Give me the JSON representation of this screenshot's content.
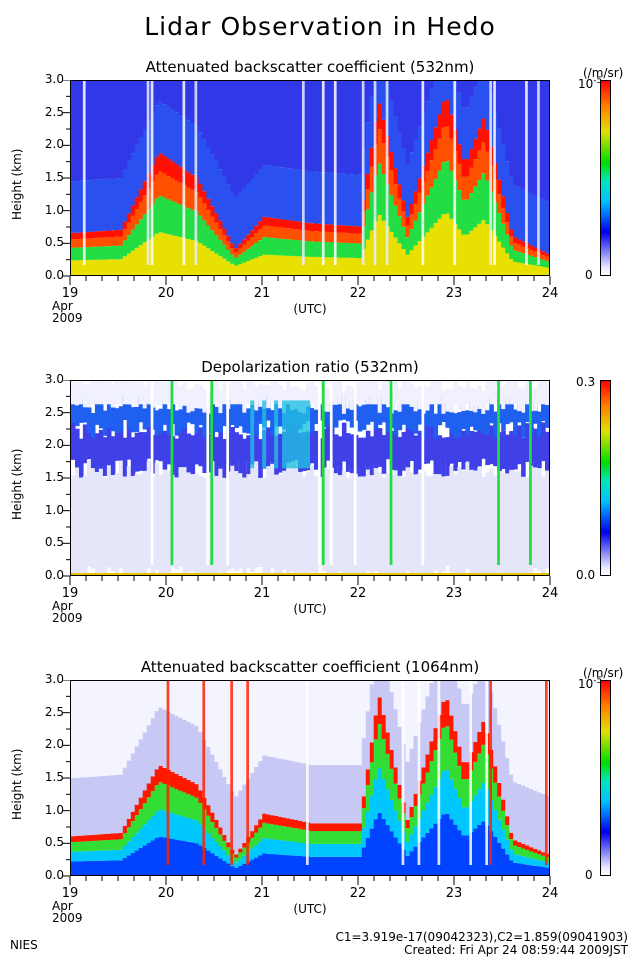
{
  "title": "Lidar Observation in Hedo",
  "x_axis": {
    "ticks": [
      "19",
      "20",
      "21",
      "22",
      "23",
      "24"
    ],
    "date_line1": "Apr",
    "date_line2": "2009",
    "unit_label": "(UTC)"
  },
  "y_axis": {
    "label": "Height (km)",
    "ticks": [
      "0.0",
      "0.5",
      "1.0",
      "1.5",
      "2.0",
      "2.5",
      "3.0"
    ]
  },
  "panels": [
    {
      "title": "Attenuated backscatter coefficient (532nm)",
      "cbar_unit": "(/m/sr)",
      "cbar_top": "10",
      "cbar_bottom": "0",
      "cbar_top_superscript": "-5"
    },
    {
      "title": "Depolarization ratio (532nm)",
      "cbar_unit": "",
      "cbar_top": "0.3",
      "cbar_bottom": "0.0"
    },
    {
      "title": "Attenuated backscatter coefficient (1064nm)",
      "cbar_unit": "(/m/sr)",
      "cbar_top": "10",
      "cbar_bottom": "0",
      "cbar_top_superscript": "-5"
    }
  ],
  "footer": {
    "left": "NIES",
    "constants": "C1=3.919e-17(09042323),C2=1.859(09041903)",
    "created": "Created: Fri Apr 24 08:59:44 2009JST"
  },
  "chart_data": [
    {
      "type": "heatmap",
      "title": "Attenuated backscatter coefficient (532nm)",
      "xlabel": "(UTC)",
      "ylabel": "Height (km)",
      "xlim": [
        "2009-04-19",
        "2009-04-24"
      ],
      "ylim": [
        0,
        3.0
      ],
      "colorbar": {
        "min": 0,
        "max": "10^-5",
        "unit": "/m/sr"
      },
      "cloud_top_height_km": [
        {
          "x": 19.0,
          "y": 0.65
        },
        {
          "x": 19.5,
          "y": 0.7
        },
        {
          "x": 19.9,
          "y": 1.9
        },
        {
          "x": 20.3,
          "y": 1.5
        },
        {
          "x": 20.7,
          "y": 0.4
        },
        {
          "x": 21.0,
          "y": 0.9
        },
        {
          "x": 21.5,
          "y": 0.8
        },
        {
          "x": 22.0,
          "y": 0.75
        },
        {
          "x": 22.2,
          "y": 2.7
        },
        {
          "x": 22.5,
          "y": 0.9
        },
        {
          "x": 22.9,
          "y": 2.8
        },
        {
          "x": 23.1,
          "y": 1.7
        },
        {
          "x": 23.3,
          "y": 2.45
        },
        {
          "x": 23.6,
          "y": 0.6
        },
        {
          "x": 24.0,
          "y": 0.3
        }
      ]
    },
    {
      "type": "heatmap",
      "title": "Depolarization ratio (532nm)",
      "xlabel": "(UTC)",
      "ylabel": "Height (km)",
      "xlim": [
        "2009-04-19",
        "2009-04-24"
      ],
      "ylim": [
        0,
        3.0
      ],
      "colorbar": {
        "min": 0.0,
        "max": 0.3
      }
    },
    {
      "type": "heatmap",
      "title": "Attenuated backscatter coefficient (1064nm)",
      "xlabel": "(UTC)",
      "ylabel": "Height (km)",
      "xlim": [
        "2009-04-19",
        "2009-04-24"
      ],
      "ylim": [
        0,
        3.0
      ],
      "colorbar": {
        "min": 0,
        "max": "10^-5",
        "unit": "/m/sr"
      },
      "cloud_top_height_km": [
        {
          "x": 19.0,
          "y": 0.6
        },
        {
          "x": 19.5,
          "y": 0.65
        },
        {
          "x": 19.9,
          "y": 1.7
        },
        {
          "x": 20.3,
          "y": 1.4
        },
        {
          "x": 20.7,
          "y": 0.3
        },
        {
          "x": 21.0,
          "y": 0.95
        },
        {
          "x": 21.5,
          "y": 0.8
        },
        {
          "x": 22.0,
          "y": 0.8
        },
        {
          "x": 22.2,
          "y": 2.8
        },
        {
          "x": 22.5,
          "y": 0.85
        },
        {
          "x": 22.9,
          "y": 2.8
        },
        {
          "x": 23.1,
          "y": 1.65
        },
        {
          "x": 23.3,
          "y": 2.4
        },
        {
          "x": 23.6,
          "y": 0.55
        },
        {
          "x": 24.0,
          "y": 0.3
        }
      ]
    }
  ]
}
